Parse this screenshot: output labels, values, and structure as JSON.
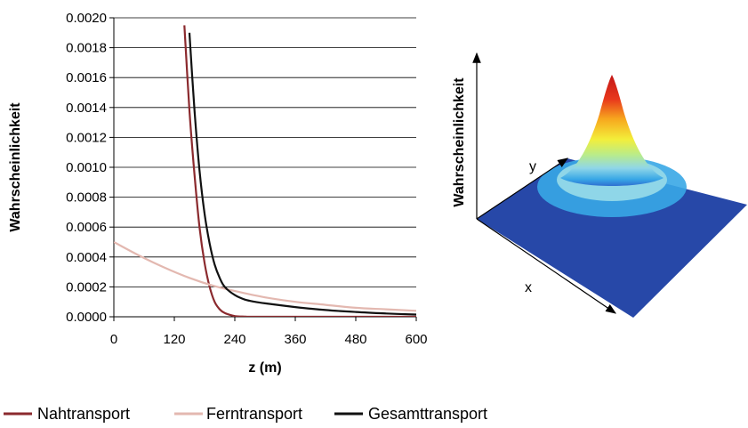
{
  "chart_data": [
    {
      "type": "line",
      "title": "",
      "xlabel": "z (m)",
      "ylabel": "Wahrscheinlichkeit",
      "xlim": [
        0,
        600
      ],
      "ylim": [
        0,
        0.002
      ],
      "x_ticks": [
        "0",
        "120",
        "240",
        "360",
        "480",
        "600"
      ],
      "y_ticks": [
        "0.0000",
        "0.0002",
        "0.0004",
        "0.0006",
        "0.0008",
        "0.0010",
        "0.0012",
        "0.0014",
        "0.0016",
        "0.0018",
        "0.0020"
      ],
      "grid": "horizontal",
      "legend_position": "bottom",
      "series": [
        {
          "name": "Nahtransport",
          "color": "#8b2a2e",
          "x": [
            140,
            150,
            160,
            170,
            180,
            190,
            200,
            210,
            220,
            240,
            260,
            300,
            600
          ],
          "y": [
            0.00195,
            0.00138,
            0.00095,
            0.0006,
            0.00036,
            0.0002,
            0.0001,
            5e-05,
            2.5e-05,
            5e-06,
            1e-06,
            0,
            0
          ]
        },
        {
          "name": "Ferntransport",
          "color": "#e3b8b0",
          "x": [
            0,
            50,
            100,
            150,
            200,
            250,
            300,
            360,
            420,
            480,
            540,
            600
          ],
          "y": [
            0.0005,
            0.00041,
            0.00033,
            0.00026,
            0.000205,
            0.000165,
            0.00013,
            0.0001,
            8e-05,
            6e-05,
            5e-05,
            4e-05
          ]
        },
        {
          "name": "Gesamttransport",
          "color": "#111111",
          "x": [
            150,
            160,
            170,
            180,
            190,
            200,
            210,
            220,
            240,
            260,
            280,
            300,
            360,
            420,
            480,
            540,
            600
          ],
          "y": [
            0.0019,
            0.00138,
            0.00098,
            0.00069,
            0.00049,
            0.00035,
            0.00026,
            0.0002,
            0.000145,
            0.000115,
            0.0001,
            9e-05,
            6.5e-05,
            4.5e-05,
            3.2e-05,
            2.2e-05,
            1.5e-05
          ]
        }
      ]
    },
    {
      "type": "heatmap",
      "title": "",
      "xlabel": "x",
      "ylabel": "y",
      "zlabel": "Wahrscheinlichkeit",
      "colormap": [
        "#1f3c99",
        "#2f6fd1",
        "#38a7e6",
        "#8fd6e8",
        "#b9ec8a",
        "#f3ee3a",
        "#f7a81e",
        "#e8381c",
        "#c31616"
      ]
    }
  ],
  "legend": {
    "items": [
      {
        "label": "Nahtransport",
        "color": "#8b2a2e"
      },
      {
        "label": "Ferntransport",
        "color": "#e3b8b0"
      },
      {
        "label": "Gesamttransport",
        "color": "#111111"
      }
    ]
  }
}
